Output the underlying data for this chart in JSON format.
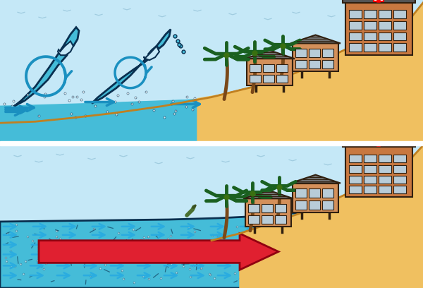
{
  "sky_color": "#c5e8f7",
  "sand_color": "#f0c060",
  "sand_dark": "#d4a030",
  "sand_outline": "#c08020",
  "water_color": "#45bcd8",
  "water_dark": "#2090b0",
  "wave_outline": "#0a3050",
  "arrow_blue": "#1a90c0",
  "arrow_blue_fill": "#2aace0",
  "arrow_red": "#e02030",
  "arrow_red_dark": "#900010",
  "building_color": "#d4905a",
  "building_color2": "#c87840",
  "building_roof": "#707070",
  "building_roof2": "#555555",
  "building_outline": "#302010",
  "window_color": "#b8ccd8",
  "tree_trunk": "#7a4818",
  "tree_color": "#1a6020",
  "bird_color": "#a0cce0",
  "sep_color": "#ffffff",
  "fig_width": 6.0,
  "fig_height": 4.08,
  "dpi": 100
}
